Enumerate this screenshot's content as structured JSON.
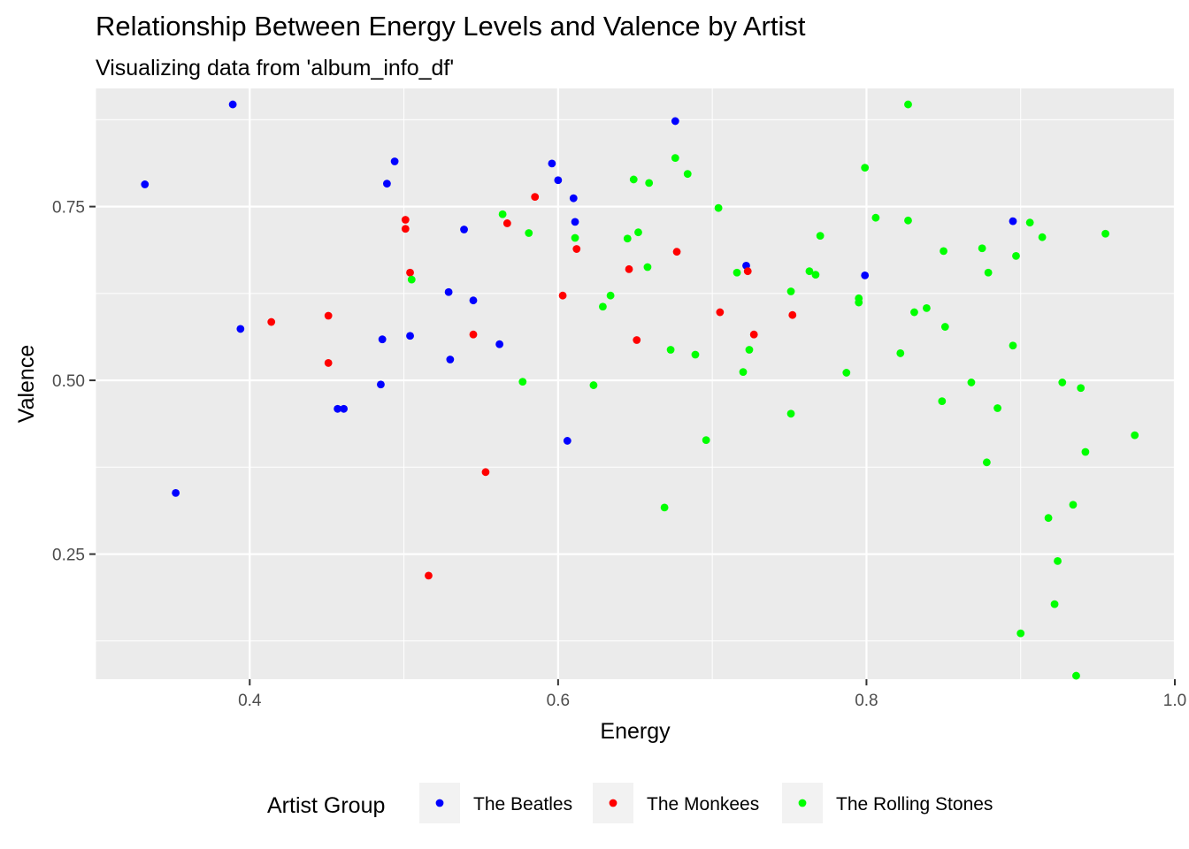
{
  "chart_data": {
    "type": "scatter",
    "title": "Relationship Between Energy Levels and Valence by Artist",
    "subtitle": "Visualizing data from 'album_info_df'",
    "xlabel": "Energy",
    "ylabel": "Valence",
    "xlim": [
      0.3,
      1.0
    ],
    "ylim": [
      0.07,
      0.92
    ],
    "x_ticks": [
      0.4,
      0.6,
      0.8,
      1.0
    ],
    "x_tick_labels": [
      "0.4",
      "0.6",
      "0.8",
      "1.0"
    ],
    "y_ticks": [
      0.25,
      0.5,
      0.75
    ],
    "y_tick_labels": [
      "0.25",
      "0.50",
      "0.75"
    ],
    "grid": true,
    "legend_position": "bottom",
    "legend_title": "Artist Group",
    "series": [
      {
        "name": "The Beatles",
        "color": "#0000ff",
        "points": [
          [
            0.332,
            0.782
          ],
          [
            0.389,
            0.897
          ],
          [
            0.394,
            0.574
          ],
          [
            0.352,
            0.338
          ],
          [
            0.494,
            0.815
          ],
          [
            0.489,
            0.783
          ],
          [
            0.486,
            0.559
          ],
          [
            0.485,
            0.494
          ],
          [
            0.504,
            0.564
          ],
          [
            0.457,
            0.459
          ],
          [
            0.461,
            0.459
          ],
          [
            0.539,
            0.717
          ],
          [
            0.529,
            0.627
          ],
          [
            0.545,
            0.615
          ],
          [
            0.53,
            0.53
          ],
          [
            0.562,
            0.552
          ],
          [
            0.596,
            0.812
          ],
          [
            0.6,
            0.788
          ],
          [
            0.61,
            0.762
          ],
          [
            0.611,
            0.728
          ],
          [
            0.606,
            0.413
          ],
          [
            0.676,
            0.873
          ],
          [
            0.722,
            0.665
          ],
          [
            0.799,
            0.651
          ],
          [
            0.895,
            0.729
          ]
        ]
      },
      {
        "name": "The Monkees",
        "color": "#ff0000",
        "points": [
          [
            0.414,
            0.584
          ],
          [
            0.451,
            0.593
          ],
          [
            0.451,
            0.525
          ],
          [
            0.501,
            0.731
          ],
          [
            0.501,
            0.718
          ],
          [
            0.504,
            0.655
          ],
          [
            0.516,
            0.219
          ],
          [
            0.545,
            0.566
          ],
          [
            0.553,
            0.368
          ],
          [
            0.567,
            0.726
          ],
          [
            0.585,
            0.764
          ],
          [
            0.603,
            0.622
          ],
          [
            0.612,
            0.689
          ],
          [
            0.646,
            0.66
          ],
          [
            0.651,
            0.558
          ],
          [
            0.677,
            0.685
          ],
          [
            0.705,
            0.598
          ],
          [
            0.723,
            0.657
          ],
          [
            0.727,
            0.566
          ],
          [
            0.752,
            0.594
          ]
        ]
      },
      {
        "name": "The Rolling Stones",
        "color": "#00ff00",
        "points": [
          [
            0.505,
            0.645
          ],
          [
            0.564,
            0.739
          ],
          [
            0.581,
            0.712
          ],
          [
            0.577,
            0.498
          ],
          [
            0.611,
            0.705
          ],
          [
            0.623,
            0.493
          ],
          [
            0.629,
            0.606
          ],
          [
            0.634,
            0.622
          ],
          [
            0.645,
            0.704
          ],
          [
            0.649,
            0.789
          ],
          [
            0.652,
            0.713
          ],
          [
            0.658,
            0.663
          ],
          [
            0.659,
            0.784
          ],
          [
            0.669,
            0.317
          ],
          [
            0.673,
            0.544
          ],
          [
            0.676,
            0.82
          ],
          [
            0.684,
            0.797
          ],
          [
            0.689,
            0.537
          ],
          [
            0.696,
            0.414
          ],
          [
            0.704,
            0.748
          ],
          [
            0.716,
            0.655
          ],
          [
            0.72,
            0.512
          ],
          [
            0.724,
            0.544
          ],
          [
            0.751,
            0.452
          ],
          [
            0.751,
            0.628
          ],
          [
            0.763,
            0.657
          ],
          [
            0.767,
            0.652
          ],
          [
            0.77,
            0.708
          ],
          [
            0.787,
            0.511
          ],
          [
            0.795,
            0.612
          ],
          [
            0.795,
            0.618
          ],
          [
            0.799,
            0.806
          ],
          [
            0.806,
            0.734
          ],
          [
            0.822,
            0.539
          ],
          [
            0.827,
            0.897
          ],
          [
            0.827,
            0.73
          ],
          [
            0.831,
            0.598
          ],
          [
            0.839,
            0.604
          ],
          [
            0.849,
            0.47
          ],
          [
            0.85,
            0.686
          ],
          [
            0.851,
            0.577
          ],
          [
            0.868,
            0.497
          ],
          [
            0.875,
            0.69
          ],
          [
            0.879,
            0.655
          ],
          [
            0.878,
            0.382
          ],
          [
            0.885,
            0.46
          ],
          [
            0.895,
            0.55
          ],
          [
            0.897,
            0.679
          ],
          [
            0.9,
            0.136
          ],
          [
            0.906,
            0.727
          ],
          [
            0.914,
            0.706
          ],
          [
            0.918,
            0.302
          ],
          [
            0.922,
            0.178
          ],
          [
            0.924,
            0.24
          ],
          [
            0.927,
            0.497
          ],
          [
            0.934,
            0.321
          ],
          [
            0.936,
            0.075
          ],
          [
            0.939,
            0.489
          ],
          [
            0.942,
            0.397
          ],
          [
            0.955,
            0.711
          ],
          [
            0.974,
            0.421
          ]
        ]
      }
    ]
  }
}
